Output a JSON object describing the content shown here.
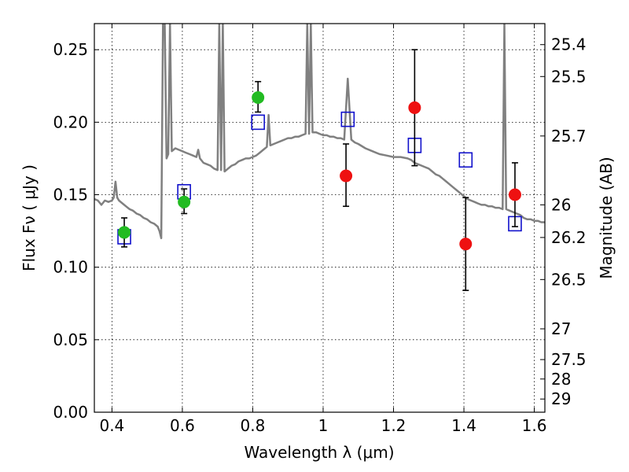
{
  "chart_data": {
    "type": "scatter",
    "xlabel": "Wavelength  λ (μm)",
    "ylabel": "Flux  Fν  ( μJy )",
    "ylabel_right": "Magnitude (AB)",
    "xlim": [
      0.35,
      1.63
    ],
    "ylim": [
      0.0,
      0.268
    ],
    "grid": true,
    "x_ticks": [
      0.4,
      0.6,
      0.8,
      1.0,
      1.2,
      1.4,
      1.6
    ],
    "x_tick_labels": [
      "0.4",
      "0.6",
      "0.8",
      "1",
      "1.2",
      "1.4",
      "1.6"
    ],
    "y_ticks": [
      0.0,
      0.05,
      0.1,
      0.15,
      0.2,
      0.25
    ],
    "y_tick_labels": [
      "0.00",
      "0.05",
      "0.10",
      "0.15",
      "0.20",
      "0.25"
    ],
    "right_ticks": [
      {
        "flux": 0.2535,
        "label": "25.4"
      },
      {
        "flux": 0.2315,
        "label": "25.5"
      },
      {
        "flux": 0.1905,
        "label": "25.7"
      },
      {
        "flux": 0.143,
        "label": "26"
      },
      {
        "flux": 0.1205,
        "label": "26.2"
      },
      {
        "flux": 0.0915,
        "label": "26.5"
      },
      {
        "flux": 0.0575,
        "label": "27"
      },
      {
        "flux": 0.0363,
        "label": "27.5"
      },
      {
        "flux": 0.0229,
        "label": "28"
      },
      {
        "flux": 0.0091,
        "label": "29"
      }
    ],
    "colors": {
      "spectrum": "#808080",
      "green": "#22bb22",
      "red": "#ee1111",
      "model": "#1111cc",
      "errorbar": "#000000"
    },
    "series": [
      {
        "name": "model spectrum",
        "style": "line",
        "points": [
          [
            0.35,
            0.147
          ],
          [
            0.36,
            0.146
          ],
          [
            0.37,
            0.143
          ],
          [
            0.38,
            0.146
          ],
          [
            0.39,
            0.145
          ],
          [
            0.4,
            0.146
          ],
          [
            0.405,
            0.148
          ],
          [
            0.41,
            0.159
          ],
          [
            0.415,
            0.148
          ],
          [
            0.42,
            0.146
          ],
          [
            0.43,
            0.144
          ],
          [
            0.44,
            0.142
          ],
          [
            0.45,
            0.14
          ],
          [
            0.46,
            0.139
          ],
          [
            0.47,
            0.137
          ],
          [
            0.48,
            0.136
          ],
          [
            0.49,
            0.134
          ],
          [
            0.5,
            0.133
          ],
          [
            0.51,
            0.131
          ],
          [
            0.52,
            0.13
          ],
          [
            0.53,
            0.128
          ],
          [
            0.535,
            0.125
          ],
          [
            0.54,
            0.12
          ],
          [
            0.545,
            0.268
          ],
          [
            0.55,
            0.268
          ],
          [
            0.555,
            0.175
          ],
          [
            0.56,
            0.178
          ],
          [
            0.565,
            0.268
          ],
          [
            0.57,
            0.18
          ],
          [
            0.58,
            0.182
          ],
          [
            0.59,
            0.181
          ],
          [
            0.6,
            0.18
          ],
          [
            0.61,
            0.179
          ],
          [
            0.62,
            0.178
          ],
          [
            0.63,
            0.177
          ],
          [
            0.64,
            0.176
          ],
          [
            0.645,
            0.181
          ],
          [
            0.65,
            0.175
          ],
          [
            0.66,
            0.172
          ],
          [
            0.67,
            0.171
          ],
          [
            0.68,
            0.17
          ],
          [
            0.69,
            0.168
          ],
          [
            0.7,
            0.167
          ],
          [
            0.705,
            0.268
          ],
          [
            0.71,
            0.167
          ],
          [
            0.715,
            0.268
          ],
          [
            0.72,
            0.166
          ],
          [
            0.73,
            0.168
          ],
          [
            0.74,
            0.17
          ],
          [
            0.75,
            0.171
          ],
          [
            0.76,
            0.173
          ],
          [
            0.77,
            0.174
          ],
          [
            0.78,
            0.175
          ],
          [
            0.79,
            0.175
          ],
          [
            0.8,
            0.176
          ],
          [
            0.81,
            0.177
          ],
          [
            0.82,
            0.179
          ],
          [
            0.83,
            0.181
          ],
          [
            0.84,
            0.183
          ],
          [
            0.845,
            0.205
          ],
          [
            0.85,
            0.184
          ],
          [
            0.86,
            0.185
          ],
          [
            0.87,
            0.186
          ],
          [
            0.88,
            0.187
          ],
          [
            0.89,
            0.188
          ],
          [
            0.9,
            0.189
          ],
          [
            0.91,
            0.189
          ],
          [
            0.92,
            0.19
          ],
          [
            0.93,
            0.19
          ],
          [
            0.94,
            0.191
          ],
          [
            0.95,
            0.192
          ],
          [
            0.955,
            0.268
          ],
          [
            0.96,
            0.192
          ],
          [
            0.965,
            0.268
          ],
          [
            0.97,
            0.193
          ],
          [
            0.98,
            0.193
          ],
          [
            0.99,
            0.192
          ],
          [
            1.0,
            0.191
          ],
          [
            1.01,
            0.191
          ],
          [
            1.02,
            0.19
          ],
          [
            1.03,
            0.19
          ],
          [
            1.04,
            0.189
          ],
          [
            1.05,
            0.189
          ],
          [
            1.06,
            0.188
          ],
          [
            1.07,
            0.23
          ],
          [
            1.08,
            0.188
          ],
          [
            1.09,
            0.186
          ],
          [
            1.1,
            0.185
          ],
          [
            1.12,
            0.182
          ],
          [
            1.14,
            0.18
          ],
          [
            1.16,
            0.178
          ],
          [
            1.18,
            0.177
          ],
          [
            1.2,
            0.176
          ],
          [
            1.22,
            0.176
          ],
          [
            1.24,
            0.175
          ],
          [
            1.25,
            0.174
          ],
          [
            1.26,
            0.172
          ],
          [
            1.27,
            0.171
          ],
          [
            1.28,
            0.17
          ],
          [
            1.29,
            0.169
          ],
          [
            1.3,
            0.168
          ],
          [
            1.31,
            0.166
          ],
          [
            1.32,
            0.164
          ],
          [
            1.33,
            0.163
          ],
          [
            1.34,
            0.161
          ],
          [
            1.35,
            0.159
          ],
          [
            1.36,
            0.157
          ],
          [
            1.37,
            0.155
          ],
          [
            1.38,
            0.153
          ],
          [
            1.39,
            0.151
          ],
          [
            1.4,
            0.149
          ],
          [
            1.41,
            0.147
          ],
          [
            1.42,
            0.146
          ],
          [
            1.43,
            0.145
          ],
          [
            1.44,
            0.144
          ],
          [
            1.45,
            0.143
          ],
          [
            1.46,
            0.143
          ],
          [
            1.47,
            0.142
          ],
          [
            1.48,
            0.142
          ],
          [
            1.49,
            0.141
          ],
          [
            1.5,
            0.141
          ],
          [
            1.51,
            0.14
          ],
          [
            1.515,
            0.268
          ],
          [
            1.52,
            0.14
          ],
          [
            1.53,
            0.139
          ],
          [
            1.54,
            0.138
          ],
          [
            1.55,
            0.137
          ],
          [
            1.56,
            0.136
          ],
          [
            1.57,
            0.134
          ],
          [
            1.58,
            0.133
          ],
          [
            1.59,
            0.133
          ],
          [
            1.6,
            0.132
          ],
          [
            1.61,
            0.132
          ],
          [
            1.62,
            0.131
          ],
          [
            1.63,
            0.131
          ]
        ]
      },
      {
        "name": "green photometry",
        "style": "circle",
        "points": [
          {
            "x": 0.435,
            "y": 0.124,
            "lo": 0.114,
            "hi": 0.134
          },
          {
            "x": 0.605,
            "y": 0.145,
            "lo": 0.137,
            "hi": 0.154
          },
          {
            "x": 0.815,
            "y": 0.217,
            "lo": 0.207,
            "hi": 0.228
          }
        ]
      },
      {
        "name": "red photometry",
        "style": "circle",
        "points": [
          {
            "x": 1.065,
            "y": 0.163,
            "lo": 0.142,
            "hi": 0.185
          },
          {
            "x": 1.26,
            "y": 0.21,
            "lo": 0.17,
            "hi": 0.25
          },
          {
            "x": 1.405,
            "y": 0.116,
            "lo": 0.084,
            "hi": 0.148
          },
          {
            "x": 1.545,
            "y": 0.15,
            "lo": 0.128,
            "hi": 0.172
          }
        ]
      },
      {
        "name": "model photometry",
        "style": "square",
        "points": [
          {
            "x": 0.435,
            "y": 0.121
          },
          {
            "x": 0.605,
            "y": 0.152
          },
          {
            "x": 0.815,
            "y": 0.2
          },
          {
            "x": 1.07,
            "y": 0.202
          },
          {
            "x": 1.26,
            "y": 0.184
          },
          {
            "x": 1.405,
            "y": 0.174
          },
          {
            "x": 1.545,
            "y": 0.13
          }
        ]
      }
    ]
  }
}
